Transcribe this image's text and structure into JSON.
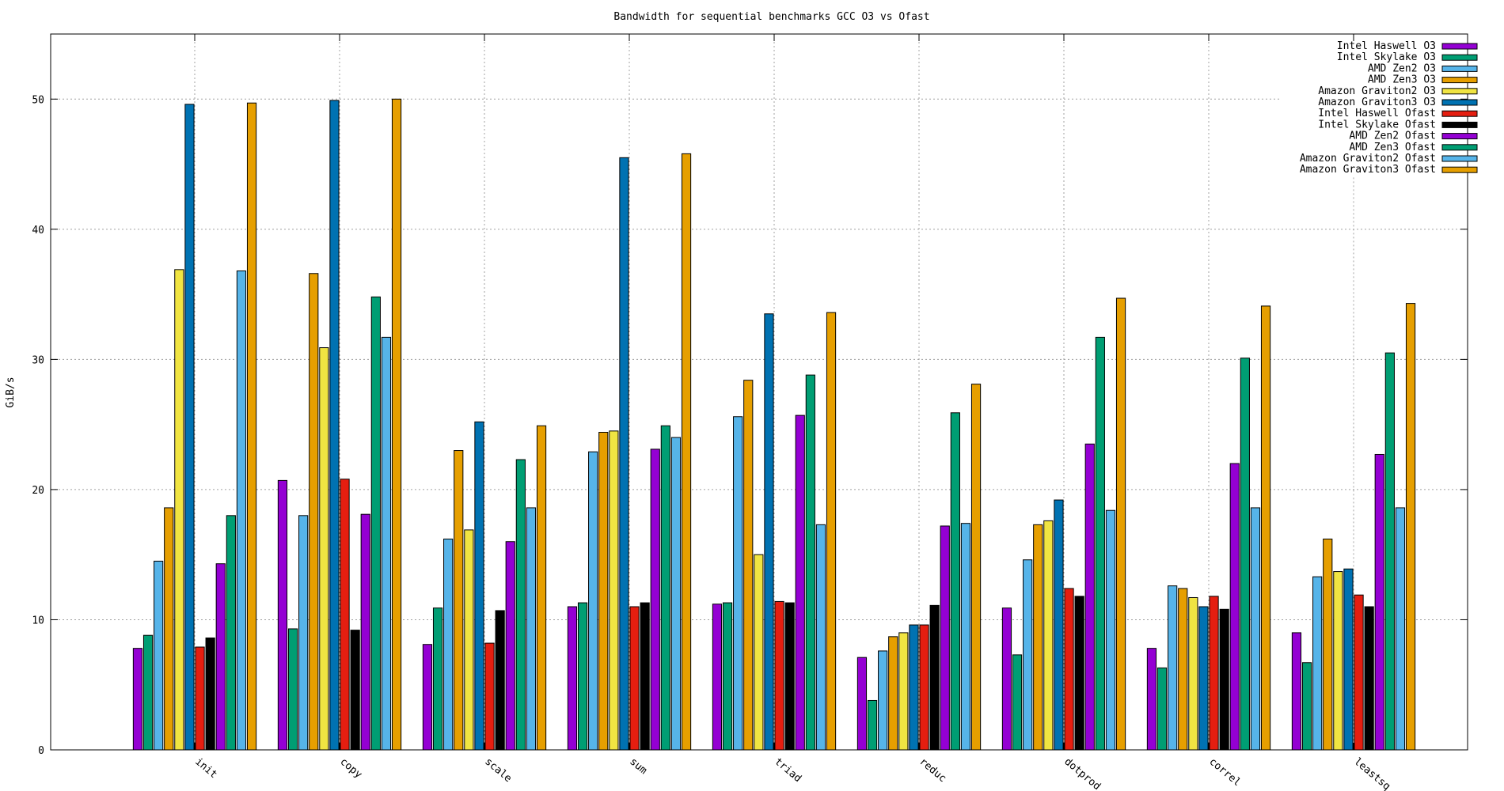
{
  "chart_data": {
    "type": "bar",
    "title": "Bandwidth for sequential benchmarks GCC O3 vs Ofast",
    "xlabel": "",
    "ylabel": "GiB/s",
    "ylim": [
      0,
      55
    ],
    "yticks": [
      0,
      10,
      20,
      30,
      40,
      50
    ],
    "grid": true,
    "legend_position": "top-right",
    "categories": [
      "init",
      "copy",
      "scale",
      "sum",
      "triad",
      "reduc",
      "dotprod",
      "correl",
      "leastsq"
    ],
    "series": [
      {
        "name": "Intel Haswell O3",
        "color": "#9400d3",
        "values": [
          7.8,
          20.7,
          8.1,
          11.0,
          11.2,
          7.1,
          10.9,
          7.8,
          9.0
        ]
      },
      {
        "name": "Intel Skylake O3",
        "color": "#009e73",
        "values": [
          8.8,
          9.3,
          10.9,
          11.3,
          11.3,
          3.8,
          7.3,
          6.3,
          6.7
        ]
      },
      {
        "name": "AMD Zen2 O3",
        "color": "#56b4e9",
        "values": [
          14.5,
          18.0,
          16.2,
          22.9,
          25.6,
          7.6,
          14.6,
          12.6,
          13.3
        ]
      },
      {
        "name": "AMD Zen3 O3",
        "color": "#e69f00",
        "values": [
          18.6,
          36.6,
          23.0,
          24.4,
          28.4,
          8.7,
          17.3,
          12.4,
          16.2
        ]
      },
      {
        "name": "Amazon Graviton2 O3",
        "color": "#f0e442",
        "values": [
          36.9,
          30.9,
          16.9,
          24.5,
          15.0,
          9.0,
          17.6,
          11.7,
          13.7
        ]
      },
      {
        "name": "Amazon Graviton3 O3",
        "color": "#0072b2",
        "values": [
          49.6,
          49.9,
          25.2,
          45.5,
          33.5,
          9.6,
          19.2,
          11.0,
          13.9
        ]
      },
      {
        "name": "Intel Haswell Ofast",
        "color": "#e51e10",
        "values": [
          7.9,
          20.8,
          8.2,
          11.0,
          11.4,
          9.6,
          12.4,
          11.8,
          11.9
        ]
      },
      {
        "name": "Intel Skylake Ofast",
        "color": "#000000",
        "values": [
          8.6,
          9.2,
          10.7,
          11.3,
          11.3,
          11.1,
          11.8,
          10.8,
          11.0
        ]
      },
      {
        "name": "AMD Zen2 Ofast",
        "color": "#9400d3",
        "values": [
          14.3,
          18.1,
          16.0,
          23.1,
          25.7,
          17.2,
          23.5,
          22.0,
          22.7
        ]
      },
      {
        "name": "AMD Zen3 Ofast",
        "color": "#009e73",
        "values": [
          18.0,
          34.8,
          22.3,
          24.9,
          28.8,
          25.9,
          31.7,
          30.1,
          30.5
        ]
      },
      {
        "name": "Amazon Graviton2 Ofast",
        "color": "#56b4e9",
        "values": [
          36.8,
          31.7,
          18.6,
          24.0,
          17.3,
          17.4,
          18.4,
          18.6,
          18.6
        ]
      },
      {
        "name": "Amazon Graviton3 Ofast",
        "color": "#e69f00",
        "values": [
          49.7,
          50.0,
          24.9,
          45.8,
          33.6,
          28.1,
          34.7,
          34.1,
          34.3
        ]
      }
    ]
  }
}
